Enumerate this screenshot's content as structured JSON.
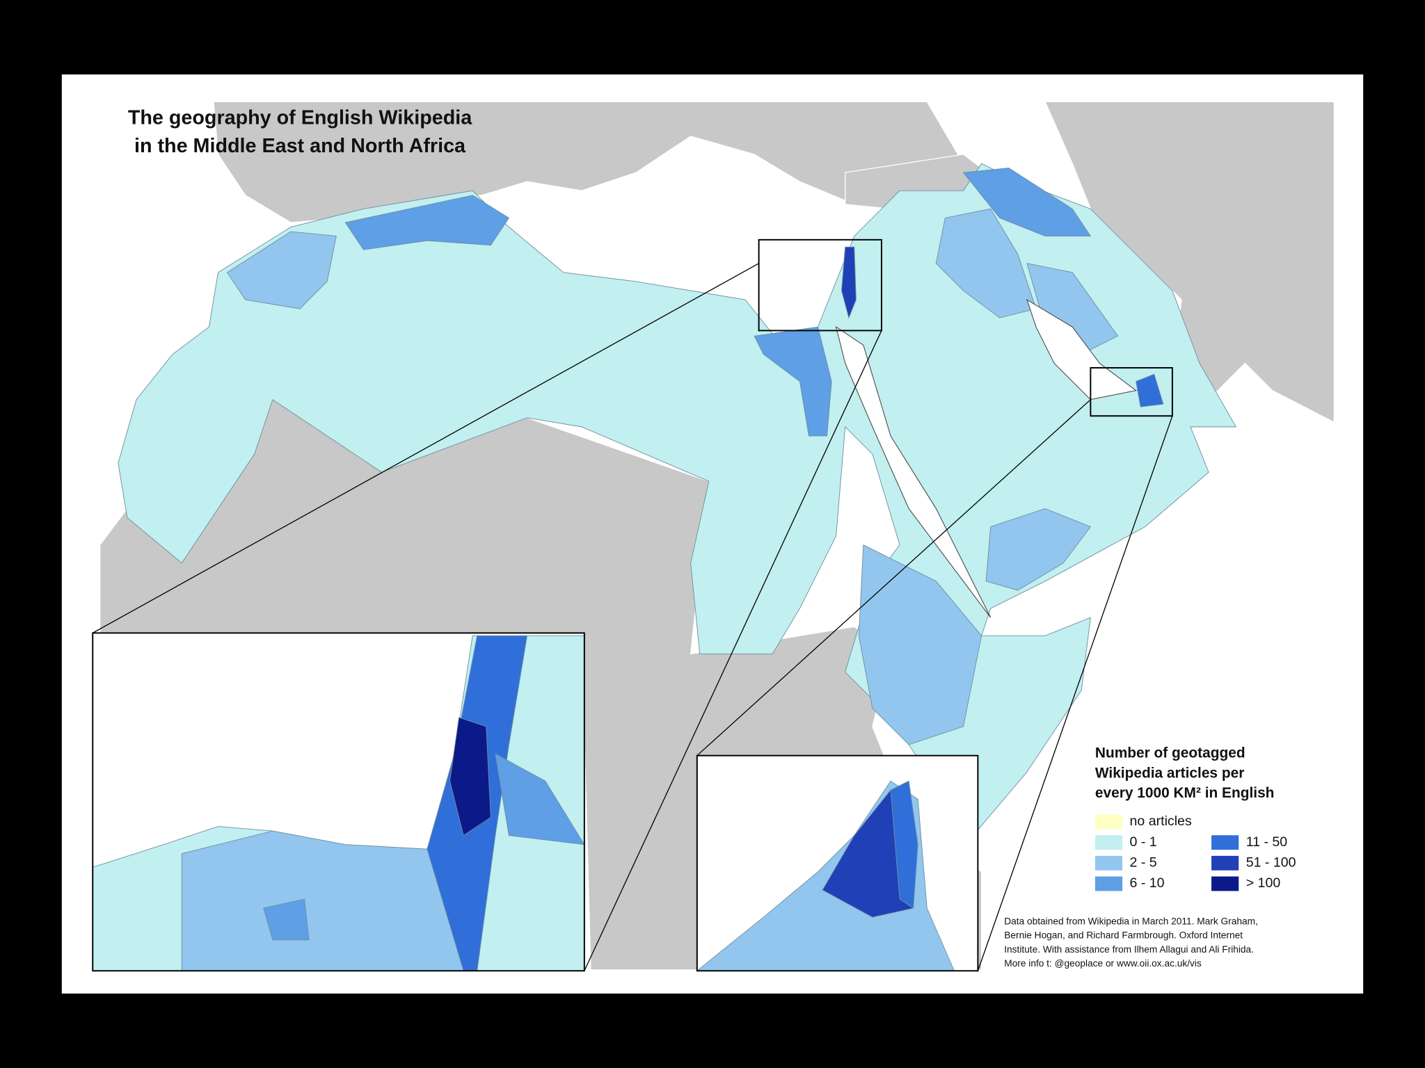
{
  "title": [
    "The geography of English Wikipedia",
    "in the Middle East and North Africa"
  ],
  "legend": {
    "title": [
      "Number of geotagged",
      "Wikipedia articles per",
      "every 1000 KM² in English"
    ],
    "items": [
      {
        "label": "no articles",
        "color": "#ffffc4"
      },
      {
        "label": "0 - 1",
        "color": "#c2eff0"
      },
      {
        "label": "2 - 5",
        "color": "#92c6ee"
      },
      {
        "label": "6 - 10",
        "color": "#5e9fe6"
      },
      {
        "label": "11 - 50",
        "color": "#306fd9"
      },
      {
        "label": "51 - 100",
        "color": "#1f40b6"
      },
      {
        "label": "> 100",
        "color": "#0b1a88"
      }
    ]
  },
  "credits": [
    "Data obtained from Wikipedia in March 2011. Mark Graham,",
    "Bernie Hogan, and Richard Farmbrough. Oxford Internet",
    "Institute. With assistance from Ilhem Allagui and Ali Frihida.",
    "More info t: @geoplace or www.oii.ox.ac.uk/vis"
  ]
}
